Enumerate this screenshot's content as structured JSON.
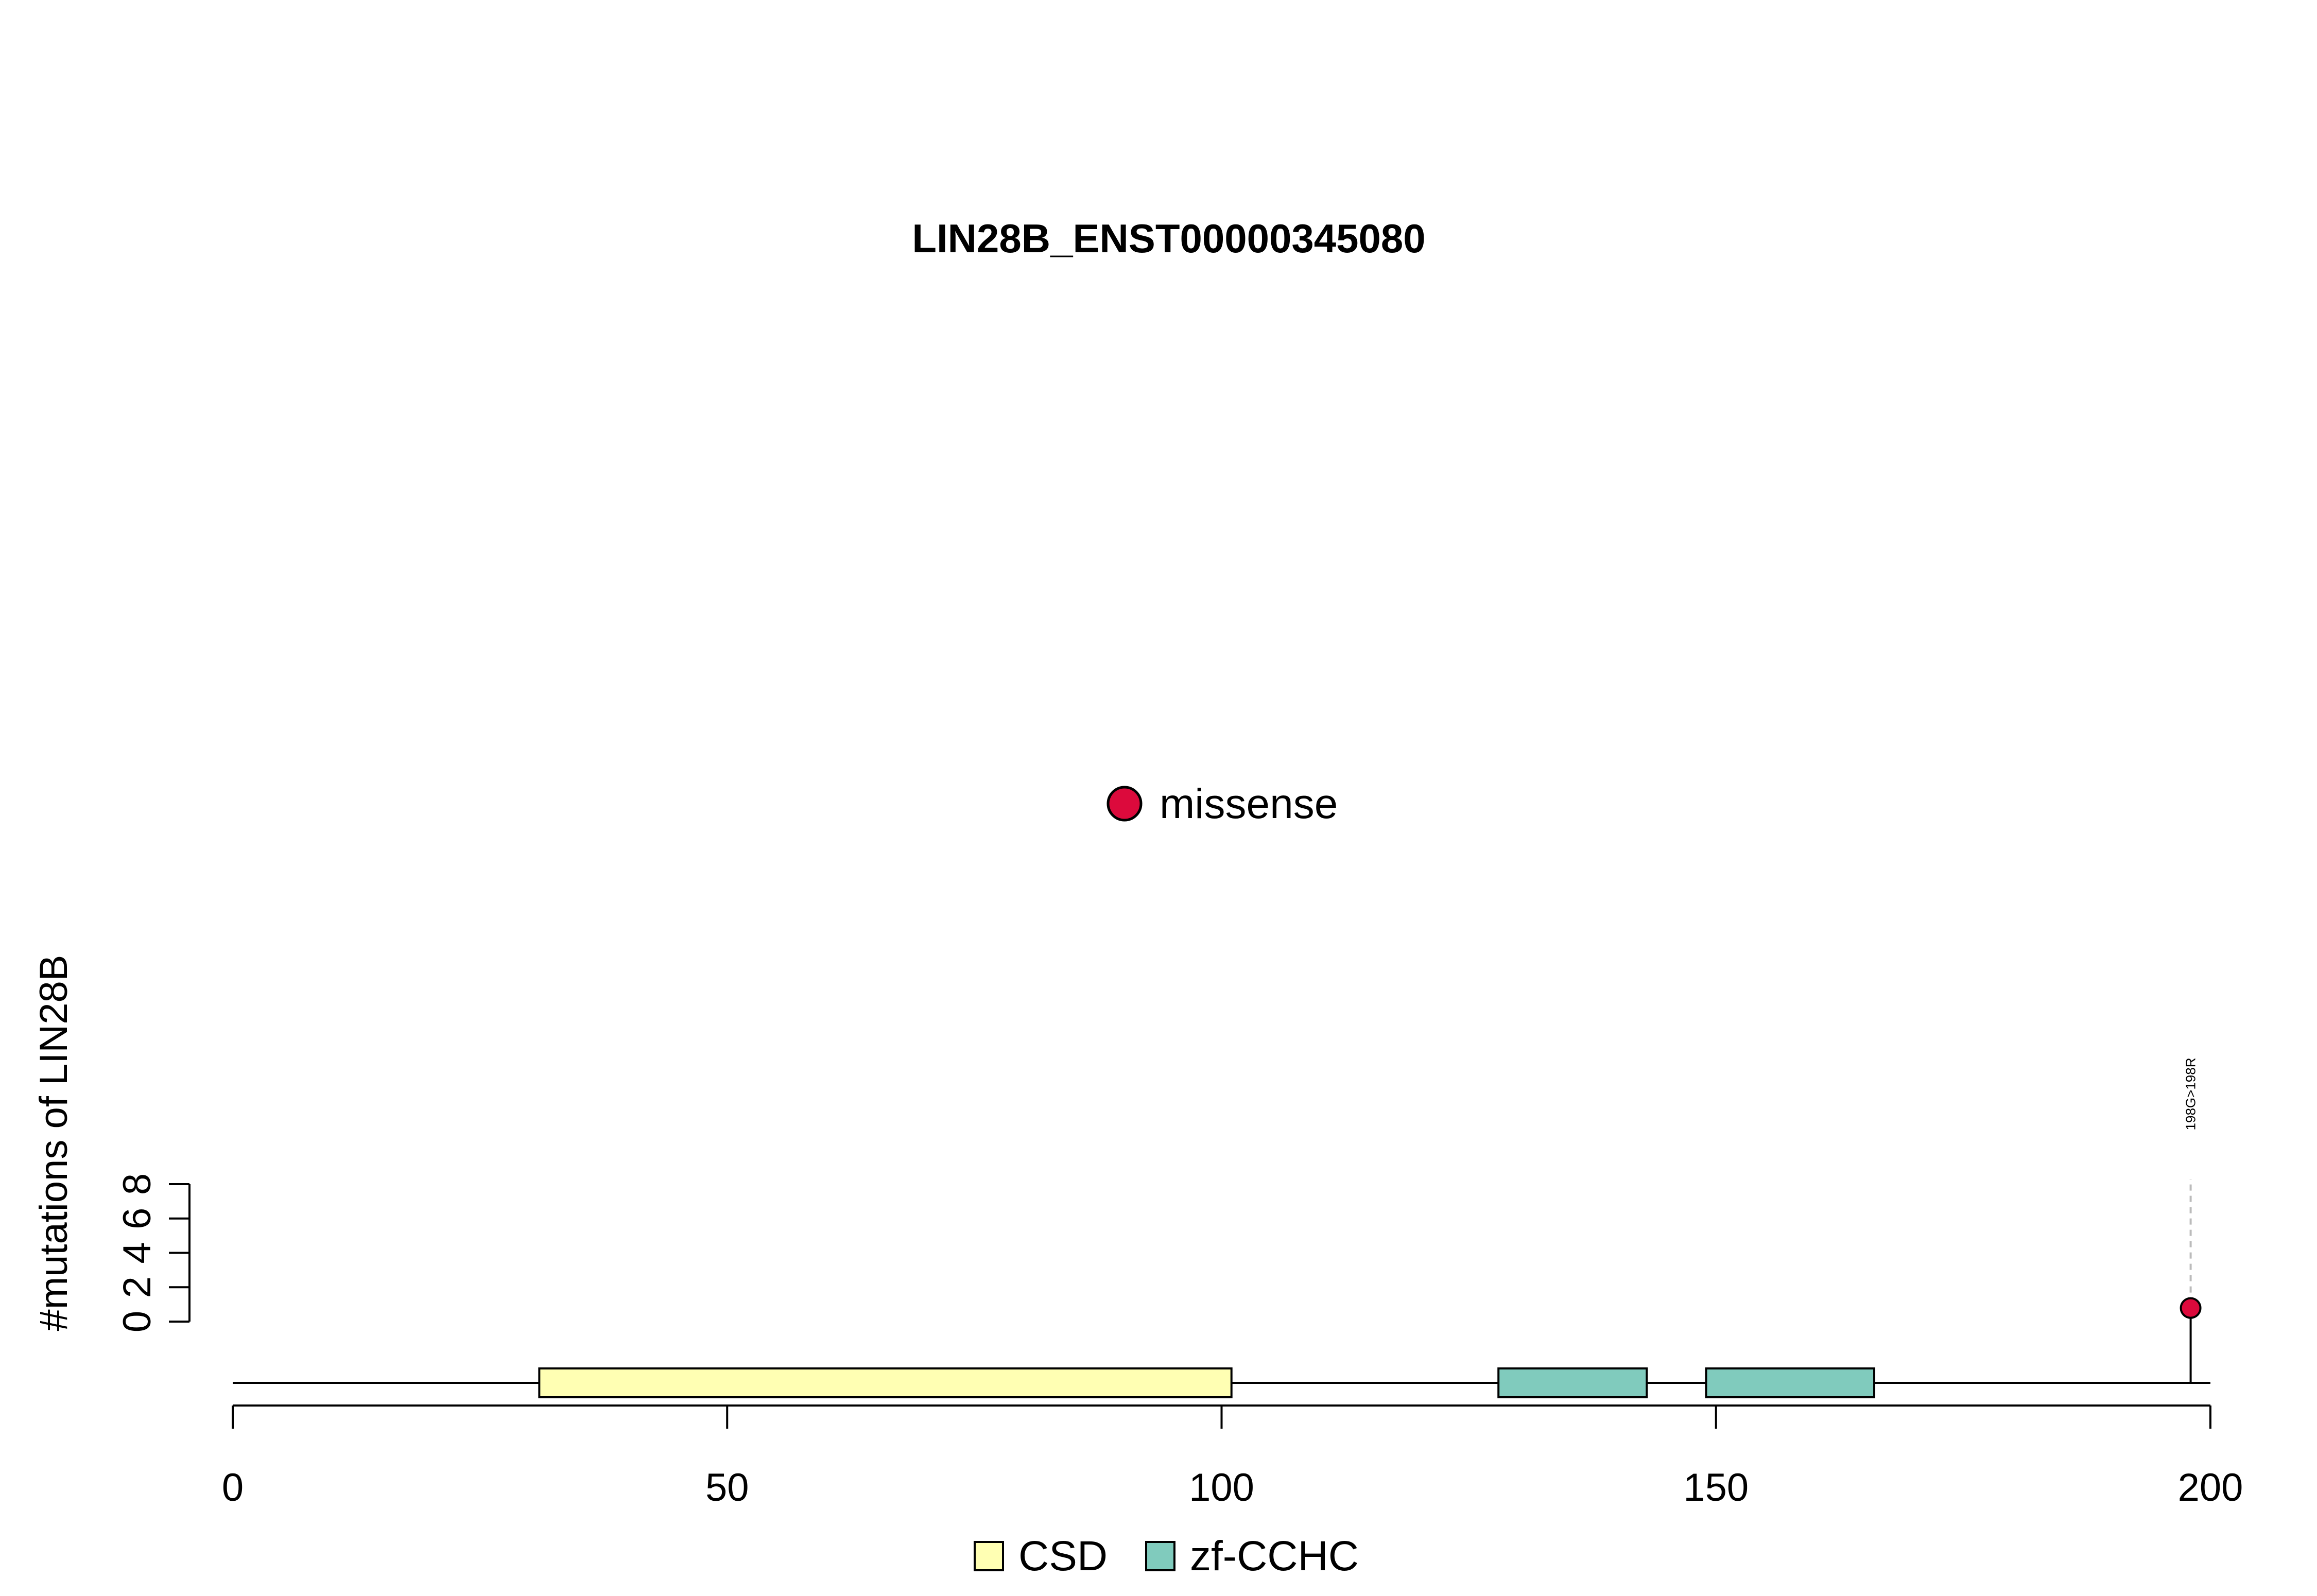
{
  "chart_data": {
    "type": "lollipop",
    "title": "LIN28B_ENST00000345080",
    "xlabel": "",
    "ylabel": "#mutations of LIN28B",
    "xlim": [
      0,
      200
    ],
    "x_ticks": [
      0,
      50,
      100,
      150,
      200
    ],
    "x_tick_labels": [
      "0",
      "50",
      "100",
      "150",
      "200"
    ],
    "y_ticks": [
      0,
      2,
      4,
      6,
      8
    ],
    "y_tick_labels": [
      "0",
      "2",
      "4",
      "6",
      "8"
    ],
    "ylim": [
      0,
      8
    ],
    "protein_length": 200,
    "domains": [
      {
        "name": "CSD",
        "start": 31,
        "end": 101,
        "color": "#ffffb3"
      },
      {
        "name": "zf-CCHC",
        "start": 128,
        "end": 143,
        "color": "#80cbbd"
      },
      {
        "name": "zf-CCHC",
        "start": 149,
        "end": 166,
        "color": "#80cbbd"
      }
    ],
    "mutations": [
      {
        "position": 198,
        "count": 1,
        "label": "198G>198R",
        "type": "missense"
      }
    ],
    "mutation_legend": [
      {
        "label": "missense",
        "color": "#dc0a3c"
      }
    ],
    "domain_legend": [
      {
        "label": "CSD",
        "color": "#ffffb3"
      },
      {
        "label": "zf-CCHC",
        "color": "#80cbbd"
      }
    ],
    "grid": false
  }
}
